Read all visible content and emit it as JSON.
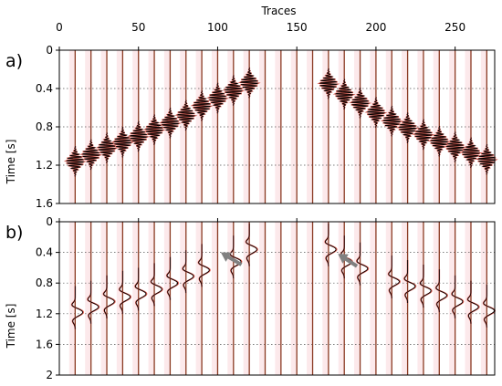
{
  "chart_data": [
    {
      "type": "line",
      "panel_label": "a)",
      "xlabel": "Traces",
      "ylabel": "Time [s]",
      "xlim": [
        0,
        275
      ],
      "ylim": [
        1.6,
        0
      ],
      "xticks": [
        0,
        50,
        100,
        150,
        200,
        250
      ],
      "yticks": [
        0,
        0.4,
        0.8,
        1.2,
        1.6
      ],
      "grid": "horizontal dotted",
      "trace_positions": [
        10,
        20,
        30,
        40,
        50,
        60,
        70,
        80,
        90,
        100,
        110,
        120,
        130,
        140,
        150,
        160,
        170,
        180,
        190,
        200,
        210,
        220,
        230,
        240,
        250,
        260,
        270
      ],
      "series": [
        {
          "role": "observed",
          "color": "#000000",
          "values": [
            1.16,
            1.09,
            1.02,
            0.96,
            0.9,
            0.83,
            0.76,
            0.68,
            0.58,
            0.5,
            0.42,
            0.34,
            null,
            null,
            null,
            null,
            0.35,
            0.46,
            0.55,
            0.65,
            0.74,
            0.81,
            0.88,
            0.95,
            1.01,
            1.07,
            1.14
          ]
        },
        {
          "role": "modeled",
          "color": "#e06055",
          "values": [
            1.16,
            1.09,
            1.02,
            0.96,
            0.9,
            0.83,
            0.76,
            0.68,
            0.58,
            0.5,
            0.42,
            0.34,
            null,
            null,
            null,
            null,
            0.35,
            0.46,
            0.55,
            0.65,
            0.74,
            0.81,
            0.88,
            0.95,
            1.01,
            1.07,
            1.14
          ]
        }
      ]
    },
    {
      "type": "line",
      "panel_label": "b)",
      "xlabel": "",
      "ylabel": "Time [s]",
      "xlim": [
        0,
        275
      ],
      "ylim": [
        2.0,
        0
      ],
      "xticks": [
        0,
        50,
        100,
        150,
        200,
        250
      ],
      "yticks": [
        0,
        0.4,
        0.8,
        1.2,
        1.6,
        2.0
      ],
      "grid": "horizontal dotted",
      "trace_positions": [
        10,
        20,
        30,
        40,
        50,
        60,
        70,
        80,
        90,
        100,
        110,
        120,
        130,
        140,
        150,
        160,
        170,
        180,
        190,
        200,
        210,
        220,
        230,
        240,
        250,
        260,
        270
      ],
      "series": [
        {
          "role": "observed",
          "color": "#000000",
          "values": [
            1.12,
            1.05,
            0.98,
            0.92,
            0.88,
            0.82,
            0.74,
            0.65,
            0.57,
            null,
            0.46,
            0.3,
            null,
            null,
            null,
            null,
            0.3,
            0.46,
            0.55,
            null,
            0.72,
            0.78,
            0.84,
            0.9,
            0.98,
            1.05,
            1.1
          ]
        },
        {
          "role": "modeled",
          "color": "#e06055",
          "values": [
            1.12,
            1.05,
            0.98,
            0.92,
            0.88,
            0.82,
            0.74,
            0.65,
            0.57,
            null,
            0.46,
            0.3,
            null,
            null,
            null,
            null,
            0.3,
            0.46,
            0.55,
            null,
            0.72,
            0.78,
            0.84,
            0.9,
            0.98,
            1.05,
            1.1
          ]
        }
      ],
      "arrows": [
        {
          "from": [
            115,
            0.56
          ],
          "to": [
            102,
            0.4
          ]
        },
        {
          "from": [
            188,
            0.58
          ],
          "to": [
            176,
            0.42
          ]
        }
      ]
    }
  ]
}
